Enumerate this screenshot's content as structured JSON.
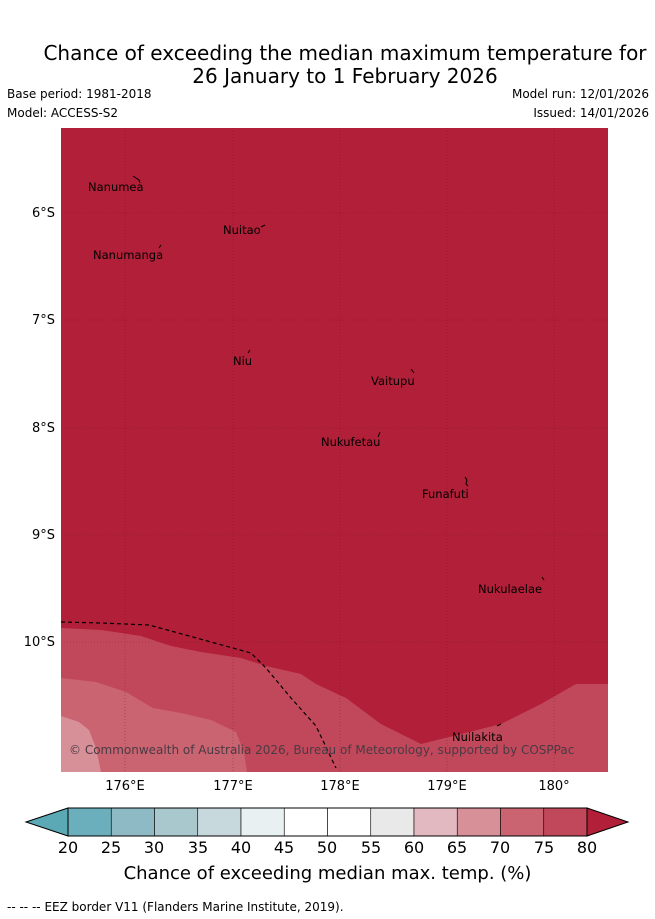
{
  "title": {
    "line1": "Chance of exceeding the median maximum temperature for",
    "line2": "26 January to 1 February 2026"
  },
  "meta": {
    "base_period": "Base period: 1981-2018",
    "model": "Model: ACCESS-S2",
    "model_run": "Model run: 12/01/2026",
    "issued": "Issued: 14/01/2026"
  },
  "map": {
    "lat_labels": [
      "6°S",
      "7°S",
      "8°S",
      "9°S",
      "10°S"
    ],
    "lon_labels": [
      "176°E",
      "177°E",
      "178°E",
      "179°E",
      "180°"
    ],
    "places": [
      "Nanumea",
      "Nuitao",
      "Nanumanga",
      "Niu",
      "Vaitupu",
      "Nukufetau",
      "Funafuti",
      "Nukulaelae",
      "Nuilakita"
    ],
    "copyright": "© Commonwealth of Australia 2026, Bureau of Meteorology, supported by COSPPac"
  },
  "colorbar": {
    "ticks": [
      "20",
      "25",
      "30",
      "35",
      "40",
      "45",
      "50",
      "55",
      "60",
      "65",
      "70",
      "75",
      "80"
    ],
    "colors": [
      "#6aafbb",
      "#8ebac5",
      "#a9c8cd",
      "#c8d9de",
      "#e9f0f2",
      "#ffffff",
      "#ffffff",
      "#e9e9ea",
      "#e2b9c0",
      "#d78f98",
      "#c96470",
      "#c1485a"
    ],
    "under_color": "#5aa9b5",
    "over_color": "#b11f38",
    "label": "Chance of exceeding median max. temp. (%)"
  },
  "footer": {
    "eez_marker": "-- -- --",
    "eez": "EEZ border V11 (Flanders Marine Institute, 2019)."
  }
}
